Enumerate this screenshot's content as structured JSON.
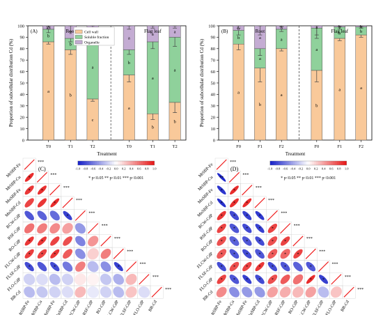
{
  "colors": {
    "cell_wall": "#f9c99a",
    "soluble": "#8fd19b",
    "organelle": "#c4acd3",
    "corr_neg": "#1f25c4",
    "corr_pos": "#ef1e1e"
  },
  "chart_data": [
    {
      "id": "A",
      "type": "bar",
      "panel_label": "(A)",
      "group_labels": [
        "Root",
        "Flag leaf"
      ],
      "categories": [
        "T0",
        "T1",
        "T2",
        "T0",
        "T1",
        "T2"
      ],
      "ylabel": "Proportion of subcellular distribution  Cd (%)",
      "xlabel": "Treatment",
      "ylim": [
        0,
        100
      ],
      "yticks": [
        0,
        10,
        20,
        30,
        40,
        50,
        60,
        70,
        80,
        90,
        100
      ],
      "legend": [
        "Cell wall",
        "Soluble fraction",
        "Organelle"
      ],
      "series": [
        {
          "name": "Cell wall",
          "values": [
            86,
            79,
            36,
            57,
            23,
            33
          ],
          "errors": [
            2,
            4,
            2,
            6,
            5,
            9
          ],
          "letters": [
            "a",
            "b",
            "c",
            "a",
            "b",
            "b"
          ]
        },
        {
          "name": "Soluble fraction",
          "values": [
            11,
            10,
            56,
            22,
            63,
            57
          ],
          "errors": [
            3,
            3,
            5,
            4,
            6,
            8
          ],
          "letters": [
            "b",
            "b",
            "a",
            "b",
            "a",
            "a"
          ]
        },
        {
          "name": "Organelle",
          "values": [
            3,
            11,
            8,
            21,
            14,
            10
          ],
          "errors": [
            1,
            5,
            2,
            3,
            2,
            2
          ],
          "letters": [
            "ab",
            "a",
            "b",
            "a",
            "a",
            "a"
          ]
        }
      ]
    },
    {
      "id": "B",
      "type": "bar",
      "panel_label": "(B)",
      "group_labels": [
        "Root",
        "Flag leaf"
      ],
      "categories": [
        "F0",
        "F1",
        "F2",
        "F0",
        "F1",
        "F2"
      ],
      "ylabel": "Proportion of subcellular distribution  Cd (%)",
      "xlabel": "Treatment",
      "ylim": [
        0,
        100
      ],
      "yticks": [
        0,
        10,
        20,
        30,
        40,
        50,
        60,
        70,
        80,
        90,
        100
      ],
      "series": [
        {
          "name": "Cell wall",
          "values": [
            84,
            63,
            80,
            61,
            89,
            92
          ],
          "errors": [
            5,
            12,
            2,
            10,
            2,
            2
          ],
          "letters": [
            "a",
            "b",
            "a",
            "b",
            "a",
            "a"
          ]
        },
        {
          "name": "Soluble fraction",
          "values": [
            12,
            17,
            17,
            37,
            10,
            7
          ],
          "errors": [
            4,
            6,
            2,
            9,
            2,
            1
          ],
          "letters": [
            "b",
            "a",
            "a",
            "a",
            "b",
            "b"
          ]
        },
        {
          "name": "Organelle",
          "values": [
            4,
            20,
            3,
            2,
            1,
            1
          ],
          "errors": [
            2,
            8,
            1,
            8,
            1,
            1
          ],
          "letters": [
            "b",
            "a",
            "b",
            "a",
            "b",
            "b"
          ]
        }
      ]
    },
    {
      "id": "C",
      "type": "heatmap",
      "panel_label": "(C)",
      "variables": [
        "MtSBP-Fe",
        "MtSBP-Cu",
        "MnSBP-Fe",
        "MnSBP-Cd",
        "RCW-CdP",
        "RSF-CdP",
        "RO-CdP",
        "FLCW-CdP",
        "FLSF-CdP",
        "FLO-CdP",
        "BR-Cd"
      ],
      "colorbar_ticks": [
        "-1.0",
        "-0.8",
        "-0.6",
        "-0.4",
        "-0.2",
        "0.0",
        "0.2",
        "0.4",
        "0.6",
        "0.8",
        "1.0"
      ],
      "significance_note": "* p<0.05  ** p<0.01  *** p<0.001",
      "corr": [
        [
          0.97
        ],
        [
          0.9,
          0.95
        ],
        [
          0.85,
          0.88,
          0.96
        ],
        [
          0.8,
          0.85,
          0.9,
          0.98
        ],
        [
          -0.75,
          -0.7,
          -0.65,
          -0.85,
          0.97
        ],
        [
          0.6,
          0.55,
          0.5,
          0.4,
          -0.45,
          0.95
        ],
        [
          0.85,
          0.85,
          0.8,
          0.75,
          -0.55,
          0.45,
          0.97
        ],
        [
          0.82,
          0.8,
          0.85,
          0.7,
          -0.5,
          0.2,
          0.55,
          0.96
        ],
        [
          -0.8,
          -0.75,
          -0.8,
          -0.6,
          0.55,
          -0.3,
          -0.5,
          -0.85,
          0.97
        ],
        [
          -0.2,
          -0.15,
          -0.3,
          -0.2,
          0.1,
          0.05,
          -0.25,
          -0.35,
          0.3,
          0.95
        ],
        [
          -0.3,
          -0.25,
          -0.2,
          -0.15,
          0.3,
          -0.1,
          -0.2,
          -0.3,
          0.25,
          -0.15,
          0.95
        ]
      ],
      "stars": [
        [
          "***"
        ],
        [
          "*",
          "***"
        ],
        [
          "*",
          "*",
          "***"
        ],
        [
          "",
          "",
          "*",
          "***"
        ],
        [
          "",
          "",
          "",
          "*",
          "***"
        ],
        [
          "",
          "",
          "",
          "",
          "",
          "***"
        ],
        [
          "*",
          "*",
          "",
          "",
          "",
          "",
          "***"
        ],
        [
          "*",
          "*",
          "*",
          "",
          "",
          "",
          "",
          "***"
        ],
        [
          "*",
          "",
          "*",
          "",
          "",
          "",
          "",
          "*",
          "***"
        ],
        [
          "",
          "",
          "",
          "",
          "",
          "",
          "",
          "",
          "",
          "***"
        ],
        [
          "",
          "",
          "",
          "",
          "",
          "",
          "",
          "",
          "",
          "",
          "***"
        ]
      ]
    },
    {
      "id": "D",
      "type": "heatmap",
      "panel_label": "(D)",
      "variables": [
        "MtSBP-Fe",
        "MtSBP-Cu",
        "MnSBP-Fe",
        "MnSBP-Cd",
        "RCW-CdP",
        "RSF-CdP",
        "RO-CdP",
        "FLCW-CdP",
        "FLSF-CdP",
        "FLO-CdP",
        "BR-Cd"
      ],
      "colorbar_ticks": [
        "-1.0",
        "-0.8",
        "-0.6",
        "-0.4",
        "-0.2",
        "0.0",
        "0.2",
        "0.4",
        "0.6",
        "0.8",
        "1.0"
      ],
      "significance_note": "* p<0.05  ** p<0.01  *** p<0.001",
      "corr": [
        [
          0.97
        ],
        [
          -0.95,
          0.97
        ],
        [
          -0.9,
          0.9,
          0.97
        ],
        [
          -0.92,
          0.88,
          0.9,
          0.97
        ],
        [
          0.85,
          -0.8,
          -0.85,
          -0.88,
          0.97
        ],
        [
          0.8,
          -0.75,
          -0.8,
          -0.85,
          0.8,
          0.95
        ],
        [
          0.75,
          -0.7,
          -0.75,
          -0.8,
          0.75,
          0.8,
          0.97
        ],
        [
          0.7,
          -0.75,
          -0.8,
          -0.75,
          0.7,
          0.65,
          0.8,
          0.96
        ],
        [
          -0.8,
          0.75,
          0.8,
          0.85,
          -0.8,
          -0.75,
          -0.7,
          -0.75,
          0.97
        ],
        [
          0.8,
          -0.75,
          -0.85,
          -0.8,
          0.75,
          0.7,
          0.6,
          0.9,
          -0.85,
          0.95
        ],
        [
          0.5,
          -0.5,
          -0.45,
          -0.45,
          0.4,
          0.35,
          0.3,
          0.4,
          -0.3,
          0.25,
          0.95
        ]
      ],
      "stars": [
        [
          "***"
        ],
        [
          "**",
          "***"
        ],
        [
          "*",
          "*",
          "***"
        ],
        [
          "*",
          "*",
          "*",
          "***"
        ],
        [
          "*",
          "*",
          "*",
          "*",
          "***"
        ],
        [
          "*",
          "*",
          "*",
          "*",
          "*",
          "***"
        ],
        [
          "*",
          "*",
          "*",
          "*",
          "*",
          "*",
          "***"
        ],
        [
          "*",
          "*",
          "*",
          "*",
          "*",
          "*",
          "*",
          "***"
        ],
        [
          "*",
          "*",
          "*",
          "*",
          "*",
          "*",
          "",
          "*",
          "***"
        ],
        [
          "*",
          "*",
          "*",
          "*",
          "*",
          "",
          "",
          "*",
          "*",
          "***"
        ],
        [
          "",
          "",
          "",
          "",
          "",
          "",
          "",
          "",
          "",
          "",
          "***"
        ]
      ]
    }
  ]
}
